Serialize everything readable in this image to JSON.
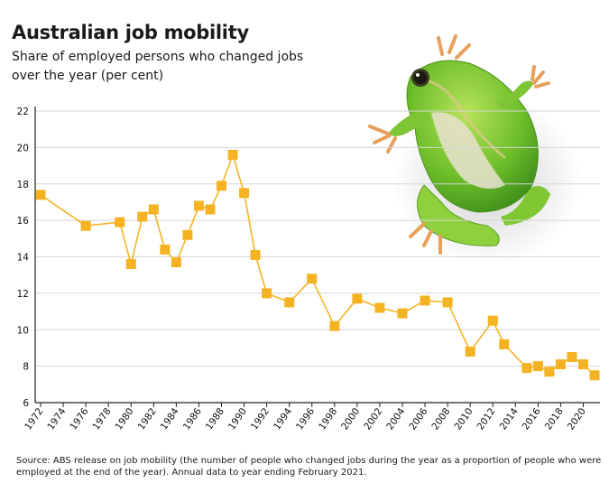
{
  "chart_data": {
    "type": "line",
    "title": "Australian job mobility",
    "subtitle": "Share of employed persons who changed jobs over the year (per cent)",
    "source": "Source: ABS release on job mobility (the number of people who changed jobs during the year as a proportion of people who were employed at the end of the year). Annual data to year ending February 2021.",
    "xlim": [
      1972,
      2021
    ],
    "ylim": [
      6,
      22
    ],
    "y_ticks": [
      6,
      8,
      10,
      12,
      14,
      16,
      18,
      20,
      22
    ],
    "x_ticks": [
      1972,
      1974,
      1976,
      1978,
      1980,
      1982,
      1984,
      1986,
      1988,
      1990,
      1992,
      1994,
      1996,
      1998,
      2000,
      2002,
      2004,
      2006,
      2008,
      2010,
      2012,
      2014,
      2016,
      2018,
      2020
    ],
    "grid": true,
    "series": [
      {
        "name": "",
        "color": "#f5b323",
        "marker": "square",
        "x": [
          1972,
          1976,
          1979,
          1980,
          1981,
          1982,
          1983,
          1984,
          1985,
          1986,
          1987,
          1988,
          1989,
          1990,
          1991,
          1992,
          1994,
          1996,
          1998,
          2000,
          2002,
          2004,
          2006,
          2008,
          2010,
          2012,
          2013,
          2015,
          2016,
          2017,
          2018,
          2019,
          2020,
          2021
        ],
        "y": [
          17.4,
          15.7,
          15.9,
          13.6,
          16.2,
          16.6,
          14.4,
          13.7,
          15.2,
          16.8,
          16.6,
          17.9,
          19.6,
          17.5,
          14.1,
          12.0,
          11.5,
          12.8,
          10.2,
          11.7,
          11.2,
          10.9,
          11.6,
          11.5,
          8.8,
          10.5,
          9.2,
          7.9,
          8.0,
          7.7,
          8.1,
          8.5,
          8.1,
          7.5
        ]
      }
    ],
    "decoration": "frog-image"
  }
}
